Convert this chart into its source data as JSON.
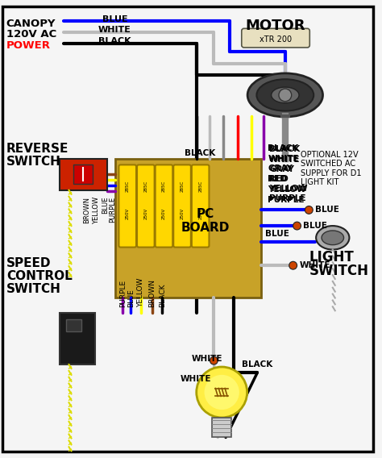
{
  "bg_color": "#f0f0f0",
  "border_color": "#000000",
  "colors": {
    "blue": "#0000ff",
    "white": "#ffffff",
    "black": "#000000",
    "gray": "#888888",
    "red": "#ff0000",
    "yellow": "#ffff00",
    "purple": "#8800aa",
    "brown": "#8B4513",
    "orange_conn": "#cc4400",
    "pcb_gold": "#c8a228",
    "pcb_border": "#7a6010",
    "cap_yellow": "#FFD700",
    "motor_dark": "#444444",
    "motor_mid": "#222222",
    "motor_light": "#777777",
    "rs_red": "#cc2200",
    "ss_dark": "#222222",
    "chain_yellow": "#dddd00",
    "chain_gray": "#aaaaaa",
    "wire_white": "#bbbbbb",
    "light_bg": "#ffffc0",
    "bulb_yellow": "#ffee44"
  },
  "texts": {
    "motor": "MOTOR",
    "motor_model": "xTR 200",
    "canopy": "CANOPY",
    "canopy2": "120V AC",
    "power": "POWER",
    "reverse": "REVERSE",
    "switch": "SWITCH",
    "speed": "SPEED",
    "control": "CONTROL",
    "switch2": "SWITCH",
    "pc": "PC",
    "board": "BOARD",
    "light": "LIGHT",
    "switch3": "SWITCH",
    "optional": "OPTIONAL 12V\nSWITCHED AC\nSUPPLY FOR D1\nLIGHT KIT",
    "blue_label": "BLUE",
    "white_label": "WHITE",
    "black_label": "BLACK",
    "gray_label": "GRAY",
    "red_label": "RED",
    "yellow_label": "YELLOW",
    "purple_label": "PURPLE",
    "brown_label": "BROWN"
  }
}
